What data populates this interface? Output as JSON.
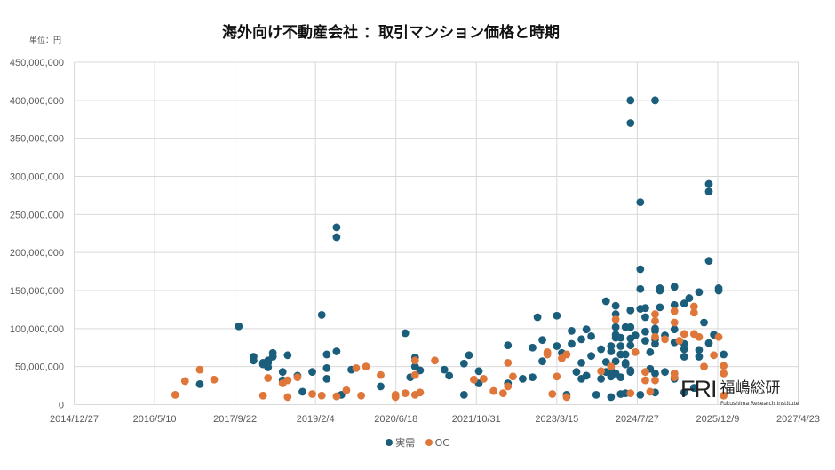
{
  "chart_data": {
    "type": "scatter",
    "title": "海外向け不動産会社 ：取引マンション価格と時期",
    "unit_label": "単位：円",
    "xlim": [
      "2014-12-27",
      "2027-04-23"
    ],
    "ylim": [
      0,
      450000000
    ],
    "x_ticks": [
      "2014/12/27",
      "2016/5/10",
      "2017/9/22",
      "2019/2/4",
      "2020/6/18",
      "2021/10/31",
      "2023/3/15",
      "2024/7/27",
      "2025/12/9",
      "2027/4/23"
    ],
    "y_ticks": [
      "0",
      "50,000,000",
      "100,000,000",
      "150,000,000",
      "200,000,000",
      "250,000,000",
      "300,000,000",
      "350,000,000",
      "400,000,000",
      "450,000,000"
    ],
    "grid": true,
    "legend_position": "bottom",
    "series": [
      {
        "name": "実需",
        "color": "#1b5e7b",
        "points": [
          [
            "2017-02",
            27000000
          ],
          [
            "2017-10",
            103000000
          ],
          [
            "2018-01",
            58000000
          ],
          [
            "2018-01",
            63000000
          ],
          [
            "2018-03",
            55000000
          ],
          [
            "2018-03",
            53000000
          ],
          [
            "2018-04",
            58000000
          ],
          [
            "2018-04",
            55000000
          ],
          [
            "2018-04",
            49000000
          ],
          [
            "2018-05",
            63000000
          ],
          [
            "2018-05",
            68000000
          ],
          [
            "2018-08",
            65000000
          ],
          [
            "2018-07",
            43000000
          ],
          [
            "2018-07",
            32000000
          ],
          [
            "2018-10",
            38000000
          ],
          [
            "2018-11",
            17000000
          ],
          [
            "2019-01",
            43000000
          ],
          [
            "2019-03",
            118000000
          ],
          [
            "2019-04",
            66000000
          ],
          [
            "2019-04",
            48000000
          ],
          [
            "2019-04",
            34000000
          ],
          [
            "2019-06",
            70000000
          ],
          [
            "2019-06",
            233000000
          ],
          [
            "2019-06",
            220000000
          ],
          [
            "2019-07",
            13000000
          ],
          [
            "2019-09",
            46000000
          ],
          [
            "2020-03",
            24000000
          ],
          [
            "2020-08",
            94000000
          ],
          [
            "2020-10",
            62000000
          ],
          [
            "2020-10",
            50000000
          ],
          [
            "2020-09",
            36000000
          ],
          [
            "2020-11",
            45000000
          ],
          [
            "2021-04",
            46000000
          ],
          [
            "2021-05",
            38000000
          ],
          [
            "2021-08",
            54000000
          ],
          [
            "2021-09",
            65000000
          ],
          [
            "2021-11",
            44000000
          ],
          [
            "2021-11",
            28000000
          ],
          [
            "2021-08",
            13000000
          ],
          [
            "2022-05",
            78000000
          ],
          [
            "2022-05",
            28000000
          ],
          [
            "2022-08",
            34000000
          ],
          [
            "2022-10",
            36000000
          ],
          [
            "2022-10",
            75000000
          ],
          [
            "2022-11",
            115000000
          ],
          [
            "2022-12",
            85000000
          ],
          [
            "2022-12",
            57000000
          ],
          [
            "2023-03",
            117000000
          ],
          [
            "2023-03",
            77000000
          ],
          [
            "2023-04",
            68000000
          ],
          [
            "2023-05",
            13000000
          ],
          [
            "2023-06",
            80000000
          ],
          [
            "2023-06",
            97000000
          ],
          [
            "2023-07",
            43000000
          ],
          [
            "2023-08",
            86000000
          ],
          [
            "2023-08",
            55000000
          ],
          [
            "2023-08",
            34000000
          ],
          [
            "2023-09",
            38000000
          ],
          [
            "2023-09",
            99000000
          ],
          [
            "2023-10",
            64000000
          ],
          [
            "2023-10",
            90000000
          ],
          [
            "2023-11",
            13000000
          ],
          [
            "2023-12",
            73000000
          ],
          [
            "2023-12",
            34000000
          ],
          [
            "2024-01",
            136000000
          ],
          [
            "2024-01",
            56000000
          ],
          [
            "2024-02",
            10000000
          ],
          [
            "2024-02",
            77000000
          ],
          [
            "2024-02",
            70000000
          ],
          [
            "2024-02",
            45000000
          ],
          [
            "2024-02",
            37000000
          ],
          [
            "2024-03",
            102000000
          ],
          [
            "2024-03",
            130000000
          ],
          [
            "2024-03",
            119000000
          ],
          [
            "2024-03",
            88000000
          ],
          [
            "2024-04",
            88000000
          ],
          [
            "2024-04",
            77000000
          ],
          [
            "2024-04",
            66000000
          ],
          [
            "2024-04",
            36000000
          ],
          [
            "2024-05",
            66000000
          ],
          [
            "2024-05",
            55000000
          ],
          [
            "2024-05",
            102000000
          ],
          [
            "2024-06",
            102000000
          ],
          [
            "2024-06",
            87000000
          ],
          [
            "2024-06",
            45000000
          ],
          [
            "2024-06",
            124000000
          ],
          [
            "2024-06",
            78000000
          ],
          [
            "2024-07",
            91000000
          ],
          [
            "2024-08",
            178000000
          ],
          [
            "2024-08",
            152000000
          ],
          [
            "2024-08",
            13000000
          ],
          [
            "2024-09",
            127000000
          ],
          [
            "2024-09",
            115000000
          ],
          [
            "2024-09",
            96000000
          ],
          [
            "2024-10",
            69000000
          ],
          [
            "2024-10",
            47000000
          ],
          [
            "2024-11",
            97000000
          ],
          [
            "2024-11",
            86000000
          ],
          [
            "2024-06",
            400000000
          ],
          [
            "2024-11",
            400000000
          ],
          [
            "2024-06",
            370000000
          ],
          [
            "2025-10",
            290000000
          ],
          [
            "2025-10",
            280000000
          ],
          [
            "2024-08",
            266000000
          ],
          [
            "2025-10",
            189000000
          ],
          [
            "2024-12",
            150000000
          ],
          [
            "2024-12",
            153000000
          ],
          [
            "2025-03",
            155000000
          ],
          [
            "2025-08",
            148000000
          ],
          [
            "2025-12",
            150000000
          ],
          [
            "2025-12",
            153000000
          ],
          [
            "2024-08",
            126000000
          ],
          [
            "2024-12",
            128000000
          ],
          [
            "2025-03",
            131000000
          ],
          [
            "2025-05",
            133000000
          ],
          [
            "2025-06",
            140000000
          ],
          [
            "2025-09",
            108000000
          ],
          [
            "2024-11",
            100000000
          ],
          [
            "2024-09",
            84000000
          ],
          [
            "2025-03",
            99000000
          ],
          [
            "2025-01",
            91000000
          ],
          [
            "2024-11",
            80000000
          ],
          [
            "2025-03",
            82000000
          ],
          [
            "2025-05",
            80000000
          ],
          [
            "2025-05",
            73000000
          ],
          [
            "2025-05",
            63000000
          ],
          [
            "2025-08",
            72000000
          ],
          [
            "2025-08",
            63000000
          ],
          [
            "2025-10",
            81000000
          ],
          [
            "2025-11",
            92000000
          ],
          [
            "2026-01",
            66000000
          ],
          [
            "2025-01",
            43000000
          ],
          [
            "2025-03",
            41000000
          ],
          [
            "2025-03",
            34000000
          ],
          [
            "2024-11",
            41000000
          ],
          [
            "2025-05",
            16000000
          ],
          [
            "2025-07",
            22000000
          ],
          [
            "2025-07",
            22000000
          ],
          [
            "2024-11",
            16000000
          ],
          [
            "2024-03",
            92000000
          ],
          [
            "2024-03",
            57000000
          ],
          [
            "2024-05",
            53000000
          ],
          [
            "2024-01",
            43000000
          ],
          [
            "2024-03",
            41000000
          ],
          [
            "2024-06",
            43000000
          ],
          [
            "2024-04",
            14000000
          ],
          [
            "2024-05",
            15000000
          ]
        ]
      },
      {
        "name": "OC",
        "color": "#e0773a",
        "points": [
          [
            "2016-09",
            13000000
          ],
          [
            "2016-11",
            31000000
          ],
          [
            "2017-02",
            46000000
          ],
          [
            "2017-05",
            33000000
          ],
          [
            "2018-03",
            12000000
          ],
          [
            "2018-04",
            35000000
          ],
          [
            "2018-07",
            28000000
          ],
          [
            "2018-08",
            10000000
          ],
          [
            "2018-08",
            32000000
          ],
          [
            "2018-10",
            36000000
          ],
          [
            "2019-01",
            14000000
          ],
          [
            "2019-03",
            12000000
          ],
          [
            "2019-06",
            11000000
          ],
          [
            "2019-08",
            19000000
          ],
          [
            "2019-10",
            48000000
          ],
          [
            "2019-12",
            50000000
          ],
          [
            "2019-11",
            12000000
          ],
          [
            "2020-03",
            39000000
          ],
          [
            "2020-06",
            13000000
          ],
          [
            "2020-06",
            10000000
          ],
          [
            "2020-08",
            15000000
          ],
          [
            "2020-10",
            13000000
          ],
          [
            "2020-11",
            16000000
          ],
          [
            "2020-10",
            58000000
          ],
          [
            "2020-10",
            39000000
          ],
          [
            "2021-02",
            58000000
          ],
          [
            "2021-10",
            33000000
          ],
          [
            "2021-12",
            34000000
          ],
          [
            "2022-05",
            55000000
          ],
          [
            "2022-06",
            37000000
          ],
          [
            "2022-02",
            18000000
          ],
          [
            "2022-04",
            15000000
          ],
          [
            "2022-05",
            24000000
          ],
          [
            "2023-01",
            69000000
          ],
          [
            "2023-01",
            66000000
          ],
          [
            "2023-03",
            37000000
          ],
          [
            "2023-02",
            14000000
          ],
          [
            "2023-04",
            61000000
          ],
          [
            "2023-05",
            66000000
          ],
          [
            "2023-05",
            10000000
          ],
          [
            "2023-12",
            44000000
          ],
          [
            "2024-02",
            50000000
          ],
          [
            "2024-03",
            112000000
          ],
          [
            "2024-07",
            69000000
          ],
          [
            "2024-06",
            15000000
          ],
          [
            "2024-09",
            43000000
          ],
          [
            "2024-09",
            32000000
          ],
          [
            "2024-10",
            17000000
          ],
          [
            "2024-11",
            119000000
          ],
          [
            "2024-11",
            110000000
          ],
          [
            "2024-11",
            89000000
          ],
          [
            "2025-03",
            123000000
          ],
          [
            "2025-03",
            108000000
          ],
          [
            "2025-07",
            129000000
          ],
          [
            "2025-07",
            121000000
          ],
          [
            "2025-01",
            86000000
          ],
          [
            "2025-04",
            84000000
          ],
          [
            "2025-05",
            93000000
          ],
          [
            "2025-07",
            93000000
          ],
          [
            "2025-08",
            89000000
          ],
          [
            "2025-12",
            89000000
          ],
          [
            "2025-11",
            65000000
          ],
          [
            "2025-09",
            50000000
          ],
          [
            "2026-01",
            51000000
          ],
          [
            "2026-01",
            41000000
          ],
          [
            "2024-11",
            32000000
          ],
          [
            "2025-03",
            41000000
          ],
          [
            "2025-03",
            36000000
          ],
          [
            "2026-01",
            12000000
          ]
        ]
      }
    ]
  },
  "logo": {
    "mark": "FRI",
    "name_jp": "福嶋総研",
    "name_en": "Fukushima Research Institute"
  }
}
